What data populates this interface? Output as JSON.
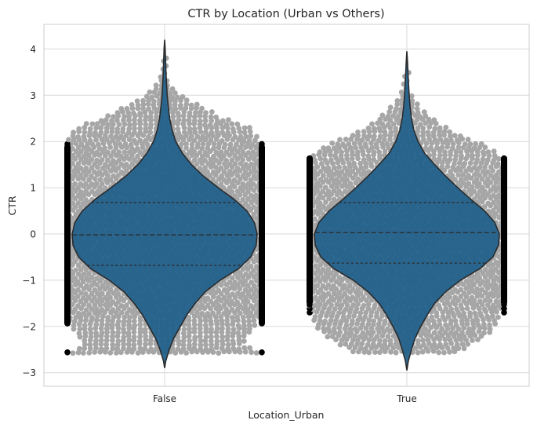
{
  "chart_data": {
    "type": "violin",
    "title": "CTR by Location (Urban vs Others)",
    "xlabel": "Location_Urban",
    "ylabel": "CTR",
    "categories": [
      "False",
      "True"
    ],
    "ylim": [
      -3.3,
      4.6
    ],
    "yticks": [
      -3,
      -2,
      -1,
      0,
      1,
      2,
      3,
      4
    ],
    "grid": true,
    "violins": [
      {
        "category": "False",
        "min": -2.9,
        "max": 4.2,
        "quartiles": [
          -0.68,
          -0.02,
          0.68
        ],
        "density": [
          [
            -2.9,
            0.0
          ],
          [
            -2.75,
            0.012
          ],
          [
            -2.5,
            0.05
          ],
          [
            -2.25,
            0.1
          ],
          [
            -2.0,
            0.17
          ],
          [
            -1.75,
            0.24
          ],
          [
            -1.5,
            0.33
          ],
          [
            -1.25,
            0.44
          ],
          [
            -1.0,
            0.6
          ],
          [
            -0.75,
            0.8
          ],
          [
            -0.5,
            0.93
          ],
          [
            -0.25,
            0.99
          ],
          [
            0.0,
            1.0
          ],
          [
            0.25,
            0.97
          ],
          [
            0.5,
            0.89
          ],
          [
            0.75,
            0.75
          ],
          [
            1.0,
            0.58
          ],
          [
            1.25,
            0.42
          ],
          [
            1.5,
            0.29
          ],
          [
            1.75,
            0.19
          ],
          [
            2.0,
            0.12
          ],
          [
            2.25,
            0.08
          ],
          [
            2.5,
            0.055
          ],
          [
            2.75,
            0.04
          ],
          [
            3.0,
            0.028
          ],
          [
            3.25,
            0.02
          ],
          [
            3.5,
            0.014
          ],
          [
            3.75,
            0.01
          ],
          [
            4.0,
            0.006
          ],
          [
            4.2,
            0.0
          ]
        ],
        "swarm_rows": [
          [
            -2.56,
            1.0
          ],
          [
            -2.4,
            0.82
          ],
          [
            -2.2,
            0.88
          ],
          [
            -2.0,
            0.95
          ],
          [
            -1.8,
            1.0
          ],
          [
            -1.5,
            1.0
          ],
          [
            -1.0,
            1.0
          ],
          [
            -0.5,
            1.0
          ],
          [
            0.0,
            1.0
          ],
          [
            0.5,
            1.0
          ],
          [
            1.0,
            1.0
          ],
          [
            1.5,
            1.0
          ],
          [
            1.9,
            1.0
          ],
          [
            2.1,
            0.98
          ],
          [
            2.3,
            0.9
          ],
          [
            2.5,
            0.62
          ],
          [
            2.7,
            0.45
          ],
          [
            2.9,
            0.26
          ],
          [
            3.1,
            0.12
          ],
          [
            3.3,
            0.06
          ],
          [
            3.5,
            0.02
          ],
          [
            3.7,
            0.01
          ],
          [
            3.85,
            0.01
          ]
        ]
      },
      {
        "category": "True",
        "min": -2.95,
        "max": 3.95,
        "quartiles": [
          -0.63,
          0.03,
          0.68
        ],
        "density": [
          [
            -2.95,
            0.0
          ],
          [
            -2.75,
            0.015
          ],
          [
            -2.5,
            0.05
          ],
          [
            -2.25,
            0.09
          ],
          [
            -2.0,
            0.15
          ],
          [
            -1.75,
            0.22
          ],
          [
            -1.5,
            0.3
          ],
          [
            -1.25,
            0.42
          ],
          [
            -1.0,
            0.58
          ],
          [
            -0.75,
            0.79
          ],
          [
            -0.5,
            0.93
          ],
          [
            -0.25,
            0.99
          ],
          [
            0.0,
            1.0
          ],
          [
            0.25,
            0.95
          ],
          [
            0.5,
            0.84
          ],
          [
            0.75,
            0.69
          ],
          [
            1.0,
            0.55
          ],
          [
            1.25,
            0.42
          ],
          [
            1.5,
            0.3
          ],
          [
            1.75,
            0.19
          ],
          [
            2.0,
            0.12
          ],
          [
            2.25,
            0.075
          ],
          [
            2.5,
            0.05
          ],
          [
            2.75,
            0.035
          ],
          [
            3.0,
            0.025
          ],
          [
            3.25,
            0.018
          ],
          [
            3.5,
            0.012
          ],
          [
            3.75,
            0.006
          ],
          [
            3.95,
            0.0
          ]
        ],
        "swarm_rows": [
          [
            -2.55,
            0.55
          ],
          [
            -2.3,
            0.75
          ],
          [
            -2.1,
            0.9
          ],
          [
            -1.9,
            0.95
          ],
          [
            -1.6,
            1.0
          ],
          [
            -1.0,
            1.0
          ],
          [
            -0.5,
            1.0
          ],
          [
            0.0,
            1.0
          ],
          [
            0.5,
            1.0
          ],
          [
            1.0,
            1.0
          ],
          [
            1.5,
            1.0
          ],
          [
            1.75,
            0.95
          ],
          [
            1.95,
            0.8
          ],
          [
            2.15,
            0.55
          ],
          [
            2.35,
            0.38
          ],
          [
            2.55,
            0.25
          ],
          [
            2.75,
            0.15
          ],
          [
            2.95,
            0.08
          ],
          [
            3.15,
            0.04
          ],
          [
            3.35,
            0.02
          ],
          [
            3.5,
            0.01
          ]
        ]
      }
    ],
    "colors": {
      "violin_fill": "#1f5f8b",
      "violin_edge": "#2b2b2b",
      "swarm_point": "#a6a6a6",
      "swarm_edge_point": "#000000",
      "grid": "#d9d9d9",
      "axes_edge": "#cccccc",
      "quartile_line": "#2b2b2b"
    }
  }
}
